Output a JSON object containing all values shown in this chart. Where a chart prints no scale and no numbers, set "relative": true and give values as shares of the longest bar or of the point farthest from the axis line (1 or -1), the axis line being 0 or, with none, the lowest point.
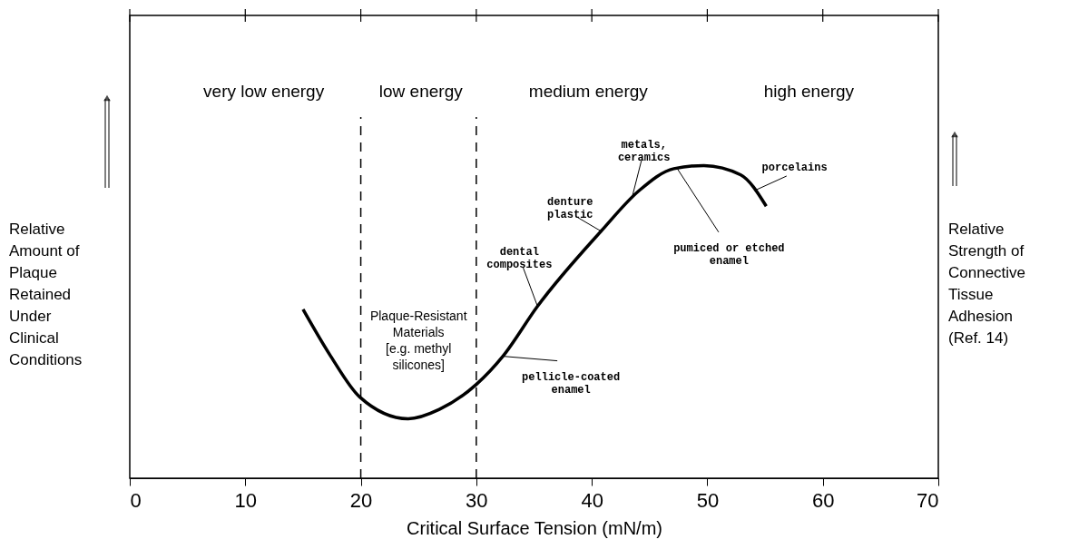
{
  "chart_data": {
    "type": "line",
    "relative": true,
    "xlabel": "Critical Surface Tension (mN/m)",
    "ylabel": "Relative\nAmount of\nPlaque\nRetained\nUnder\nClinical\nConditions",
    "y2label": "Relative\nStrength of\nConnective\nTissue\nAdhesion\n(Ref. 14)",
    "x": [
      15.0,
      17.4,
      19.9,
      24.1,
      26.8,
      30.0,
      32.3,
      35.3,
      40.8,
      44.1,
      47.1,
      49.7,
      52.9,
      55.1
    ],
    "series": [
      {
        "color": "#000000",
        "values": [
          0.54,
          0.39,
          0.26,
          0.19,
          0.22,
          0.3,
          0.39,
          0.55,
          0.79,
          0.92,
          0.99,
          1.0,
          0.97,
          0.87
        ]
      }
    ],
    "xlim": [
      0,
      70
    ],
    "xticks": [
      0,
      10,
      20,
      30,
      40,
      50,
      60,
      70
    ],
    "ref_lines": [
      {
        "axis": "x",
        "value": 20,
        "line_style": "dashed",
        "color": "#000000"
      },
      {
        "axis": "x",
        "value": 30,
        "line_style": "dashed",
        "color": "#000000"
      }
    ],
    "annotations": [
      "very low energy",
      "low energy",
      "medium energy",
      "high energy",
      "Plaque-Resistant\nMaterials\n[e.g. methyl\nsilicones]",
      {
        "text": "metals,\nceramics",
        "x": 43.5,
        "y": 0.9
      },
      {
        "text": "denture\nplastic",
        "x": 40.8,
        "y": 0.79
      },
      {
        "text": "dental\ncomposites",
        "x": 35.3,
        "y": 0.55
      },
      {
        "text": "pellicle-coated\nenamel",
        "x": 32.3,
        "y": 0.39
      },
      {
        "text": "pumiced or etched\nenamel",
        "x": 47.4,
        "y": 0.99
      },
      {
        "text": "porcelains",
        "x": 54.1,
        "y": 0.92
      }
    ],
    "grid": false,
    "marker": "none",
    "line_style": "solid"
  }
}
